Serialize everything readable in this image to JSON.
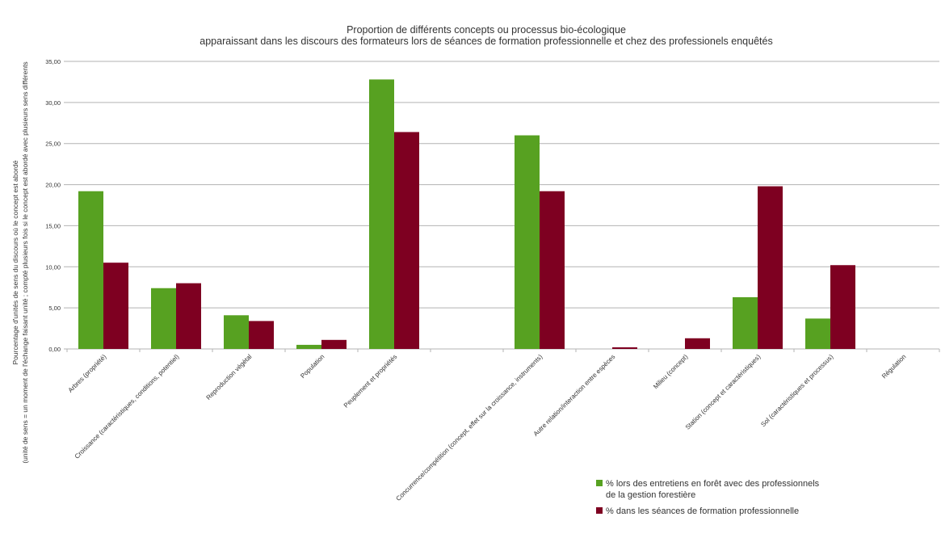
{
  "chart_data": {
    "type": "bar",
    "title": "Proportion de différents concepts ou processus bio-écologique",
    "subtitle": "apparaissant dans les discours des formateurs lors de séances de formation professionnelle et chez des professionels enquêtés",
    "ylabel": "Pourcentage d'unités de sens du discours où le concept est abordé",
    "ylabel_note": "(unité de sens = un moment de l'échange faisant unité ; compté plusieurs fois si le concept est abordé avec plusieurs sens différents",
    "xlabel": "",
    "ylim": [
      0,
      35
    ],
    "yticks": [
      "0,00",
      "5,00",
      "10,00",
      "15,00",
      "20,00",
      "25,00",
      "30,00",
      "35,00"
    ],
    "grid": true,
    "legend_position": "bottom-right",
    "categories": [
      "Arbres (propriété)",
      "Croissance (caractéristiques, conditions, potentiel)",
      "Reproduction végétal",
      "Population",
      "Peuplement et propriétés",
      "",
      "Concurrence/compétition (concept, effet sur la croissance, instruments)",
      "Autre relation/interaction entre espèces",
      "Milieu (concept)",
      "Station (concept et caractéristiques)",
      "Sol (caractéristiques et processus)",
      "Régulation"
    ],
    "series": [
      {
        "name": "% lors des entretiens en forêt avec des professionnels de la gestion forestière",
        "legend_lines": [
          "% lors des entretiens en forêt avec des professionnels",
          "de la gestion forestière"
        ],
        "color": "#57a121",
        "values": [
          19.2,
          7.4,
          4.1,
          0.5,
          32.8,
          0,
          26.0,
          0,
          0,
          6.3,
          3.7,
          0
        ]
      },
      {
        "name": "% dans les séances de formation professionnelle",
        "legend_lines": [
          "% dans les séances de formation professionnelle"
        ],
        "color": "#7e0021",
        "values": [
          10.5,
          8.0,
          3.4,
          1.1,
          26.4,
          0,
          19.2,
          0.2,
          1.3,
          19.8,
          10.2,
          0
        ]
      }
    ]
  }
}
